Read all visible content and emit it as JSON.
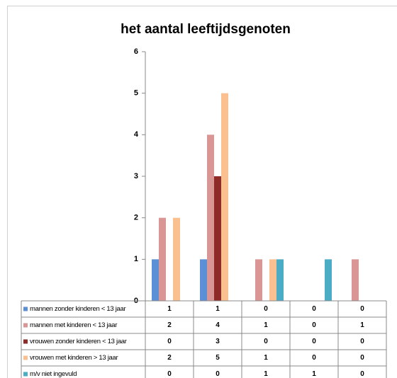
{
  "chart_data": {
    "type": "bar",
    "title": "het aantal leeftijdsgenoten",
    "categories": [
      null,
      null,
      null,
      null,
      null
    ],
    "series": [
      {
        "name": "mannen  zonder kinderen < 13 jaar",
        "color": "#5b8fd6",
        "values": [
          1,
          1,
          0,
          0,
          0
        ]
      },
      {
        "name": "mannen  met kinderen < 13 jaar",
        "color": "#d99694",
        "values": [
          2,
          4,
          1,
          0,
          1
        ]
      },
      {
        "name": "vrouwen zonder kinderen < 13 jaar",
        "color": "#8e2a28",
        "values": [
          0,
          3,
          0,
          0,
          0
        ]
      },
      {
        "name": "vrouwen met kinderen > 13 jaar",
        "color": "#fac090",
        "values": [
          2,
          5,
          1,
          0,
          0
        ]
      },
      {
        "name": "m/v niet ingevuld",
        "color": "#4bacc6",
        "values": [
          0,
          0,
          1,
          1,
          0
        ]
      }
    ],
    "ylim": [
      0,
      6
    ],
    "yticks": [
      0,
      1,
      2,
      3,
      4,
      5,
      6
    ],
    "grid": false
  }
}
